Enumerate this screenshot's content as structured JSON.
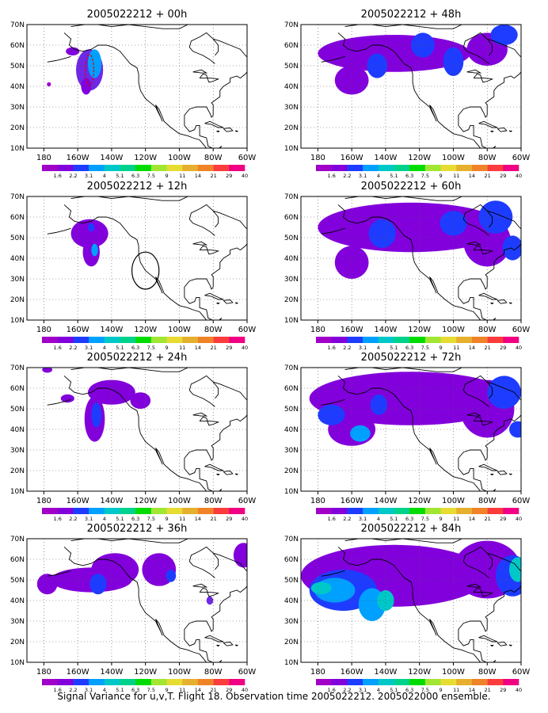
{
  "panels": [
    {
      "title": "2005022212 + 00h",
      "lead": "00h",
      "blobs": [
        {
          "lon": -153,
          "lat": 48,
          "rx": 8,
          "ry": 10,
          "level": 2
        },
        {
          "lon": -150,
          "lat": 51,
          "rx": 4,
          "ry": 7,
          "level": 4
        },
        {
          "lon": -163,
          "lat": 57,
          "rx": 4,
          "ry": 2,
          "level": 1
        },
        {
          "lon": -177,
          "lat": 41,
          "rx": 1.2,
          "ry": 1,
          "level": 0
        },
        {
          "lon": -155,
          "lat": 40,
          "rx": 3,
          "ry": 4,
          "level": 1
        }
      ],
      "observation_ellipse": {
        "lon": -153,
        "lat": 48,
        "rx": 2.5,
        "ry": 7.5,
        "color": "#e00000",
        "dashed": true
      }
    },
    {
      "title": "2005022212 + 12h",
      "lead": "12h",
      "blobs": [
        {
          "lon": -153,
          "lat": 52,
          "rx": 11,
          "ry": 7,
          "level": 1
        },
        {
          "lon": -152,
          "lat": 43,
          "rx": 5,
          "ry": 7,
          "level": 1
        },
        {
          "lon": -150,
          "lat": 44,
          "rx": 2,
          "ry": 3,
          "level": 4
        },
        {
          "lon": -152,
          "lat": 55,
          "rx": 2,
          "ry": 2,
          "level": 3
        }
      ],
      "observation_ellipse": {
        "lon": -120,
        "lat": 34,
        "rx": 8,
        "ry": 9,
        "color": "#000000",
        "dashed": false
      }
    },
    {
      "title": "2005022212 + 24h",
      "lead": "24h",
      "blobs": [
        {
          "lon": -140,
          "lat": 58,
          "rx": 14,
          "ry": 6,
          "level": 1
        },
        {
          "lon": -150,
          "lat": 45,
          "rx": 6,
          "ry": 11,
          "level": 1
        },
        {
          "lon": -149,
          "lat": 47,
          "rx": 3,
          "ry": 6,
          "level": 3
        },
        {
          "lon": -123,
          "lat": 54,
          "rx": 6,
          "ry": 4,
          "level": 1
        },
        {
          "lon": -166,
          "lat": 55,
          "rx": 4,
          "ry": 2,
          "level": 1
        },
        {
          "lon": -178,
          "lat": 69,
          "rx": 3,
          "ry": 1.5,
          "level": 1
        }
      ]
    },
    {
      "title": "2005022212 + 36h",
      "lead": "36h",
      "blobs": [
        {
          "lon": -152,
          "lat": 50,
          "rx": 24,
          "ry": 6,
          "level": 1
        },
        {
          "lon": -138,
          "lat": 55,
          "rx": 14,
          "ry": 8,
          "level": 1
        },
        {
          "lon": -148,
          "lat": 48,
          "rx": 5,
          "ry": 5,
          "level": 3
        },
        {
          "lon": -112,
          "lat": 55,
          "rx": 10,
          "ry": 8,
          "level": 1
        },
        {
          "lon": -105,
          "lat": 52,
          "rx": 3,
          "ry": 3,
          "level": 3
        },
        {
          "lon": -178,
          "lat": 48,
          "rx": 6,
          "ry": 5,
          "level": 1
        },
        {
          "lon": -62,
          "lat": 62,
          "rx": 6,
          "ry": 6,
          "level": 1
        },
        {
          "lon": -82,
          "lat": 40,
          "rx": 2,
          "ry": 2,
          "level": 2
        }
      ]
    },
    {
      "title": "2005022212 + 48h",
      "lead": "48h",
      "blobs": [
        {
          "lon": -135,
          "lat": 56,
          "rx": 45,
          "ry": 9,
          "level": 1
        },
        {
          "lon": -160,
          "lat": 43,
          "rx": 10,
          "ry": 7,
          "level": 1
        },
        {
          "lon": -145,
          "lat": 50,
          "rx": 6,
          "ry": 6,
          "level": 3
        },
        {
          "lon": -118,
          "lat": 60,
          "rx": 7,
          "ry": 6,
          "level": 3
        },
        {
          "lon": -100,
          "lat": 52,
          "rx": 6,
          "ry": 7,
          "level": 3
        },
        {
          "lon": -80,
          "lat": 58,
          "rx": 12,
          "ry": 8,
          "level": 1
        },
        {
          "lon": -70,
          "lat": 65,
          "rx": 8,
          "ry": 5,
          "level": 3
        }
      ]
    },
    {
      "title": "2005022212 + 60h",
      "lead": "60h",
      "blobs": [
        {
          "lon": -125,
          "lat": 55,
          "rx": 55,
          "ry": 12,
          "level": 1
        },
        {
          "lon": -160,
          "lat": 38,
          "rx": 10,
          "ry": 8,
          "level": 1
        },
        {
          "lon": -142,
          "lat": 52,
          "rx": 8,
          "ry": 7,
          "level": 3
        },
        {
          "lon": -100,
          "lat": 57,
          "rx": 8,
          "ry": 6,
          "level": 3
        },
        {
          "lon": -80,
          "lat": 48,
          "rx": 14,
          "ry": 12,
          "level": 1
        },
        {
          "lon": -75,
          "lat": 60,
          "rx": 10,
          "ry": 8,
          "level": 3
        },
        {
          "lon": -65,
          "lat": 45,
          "rx": 6,
          "ry": 6,
          "level": 3
        }
      ]
    },
    {
      "title": "2005022212 + 72h",
      "lead": "72h",
      "blobs": [
        {
          "lon": -125,
          "lat": 55,
          "rx": 60,
          "ry": 13,
          "level": 1
        },
        {
          "lon": -160,
          "lat": 40,
          "rx": 14,
          "ry": 8,
          "level": 1
        },
        {
          "lon": -155,
          "lat": 38,
          "rx": 6,
          "ry": 4,
          "level": 4
        },
        {
          "lon": -172,
          "lat": 47,
          "rx": 8,
          "ry": 5,
          "level": 3
        },
        {
          "lon": -144,
          "lat": 52,
          "rx": 5,
          "ry": 5,
          "level": 3
        },
        {
          "lon": -80,
          "lat": 50,
          "rx": 16,
          "ry": 14,
          "level": 1
        },
        {
          "lon": -70,
          "lat": 58,
          "rx": 10,
          "ry": 8,
          "level": 3
        },
        {
          "lon": -62,
          "lat": 40,
          "rx": 5,
          "ry": 4,
          "level": 3
        }
      ]
    },
    {
      "title": "2005022212 + 84h",
      "lead": "84h",
      "blobs": [
        {
          "lon": -135,
          "lat": 52,
          "rx": 55,
          "ry": 15,
          "level": 1
        },
        {
          "lon": -165,
          "lat": 45,
          "rx": 20,
          "ry": 10,
          "level": 3
        },
        {
          "lon": -170,
          "lat": 45,
          "rx": 12,
          "ry": 6,
          "level": 4
        },
        {
          "lon": -178,
          "lat": 46,
          "rx": 6,
          "ry": 3,
          "level": 5
        },
        {
          "lon": -148,
          "lat": 38,
          "rx": 8,
          "ry": 8,
          "level": 4
        },
        {
          "lon": -140,
          "lat": 40,
          "rx": 5,
          "ry": 5,
          "level": 5
        },
        {
          "lon": -80,
          "lat": 55,
          "rx": 20,
          "ry": 14,
          "level": 1
        },
        {
          "lon": -65,
          "lat": 52,
          "rx": 10,
          "ry": 10,
          "level": 3
        },
        {
          "lon": -62,
          "lat": 55,
          "rx": 5,
          "ry": 6,
          "level": 5
        }
      ]
    }
  ],
  "axes": {
    "lon_range": [
      -190,
      -60
    ],
    "lat_range": [
      10,
      70
    ],
    "x_ticks": [
      {
        "lon": -180,
        "label": "180"
      },
      {
        "lon": -160,
        "label": "160W"
      },
      {
        "lon": -140,
        "label": "140W"
      },
      {
        "lon": -120,
        "label": "120W"
      },
      {
        "lon": -100,
        "label": "100W"
      },
      {
        "lon": -80,
        "label": "80W"
      },
      {
        "lon": -60,
        "label": "60W"
      }
    ],
    "y_ticks": [
      {
        "lat": 10,
        "label": "10N"
      },
      {
        "lat": 20,
        "label": "20N"
      },
      {
        "lat": 30,
        "label": "30N"
      },
      {
        "lat": 40,
        "label": "40N"
      },
      {
        "lat": 50,
        "label": "50N"
      },
      {
        "lat": 60,
        "label": "60N"
      },
      {
        "lat": 70,
        "label": "70N"
      }
    ],
    "grid": "dotted"
  },
  "colorbar": {
    "labels": [
      "1.6",
      "2.2",
      "3.1",
      "4",
      "5.1",
      "6.3",
      "7.5",
      "9",
      "11",
      "14",
      "21",
      "29",
      "40"
    ],
    "colors": [
      "#a000c8",
      "#8200dc",
      "#1e3cff",
      "#00a0ff",
      "#00c8c8",
      "#00d28c",
      "#00dc00",
      "#a0e632",
      "#e6dc32",
      "#e6af2d",
      "#f08228",
      "#fa3c3c",
      "#f00082"
    ]
  },
  "shading_colors": [
    "#a000c8",
    "#8200dc",
    "#6e28e6",
    "#1e3cff",
    "#00a0ff",
    "#00c8c8"
  ],
  "caption": "Signal Variance for u,v,T. Flight 18. Observation time 2005022212. 2005022000 ensemble."
}
